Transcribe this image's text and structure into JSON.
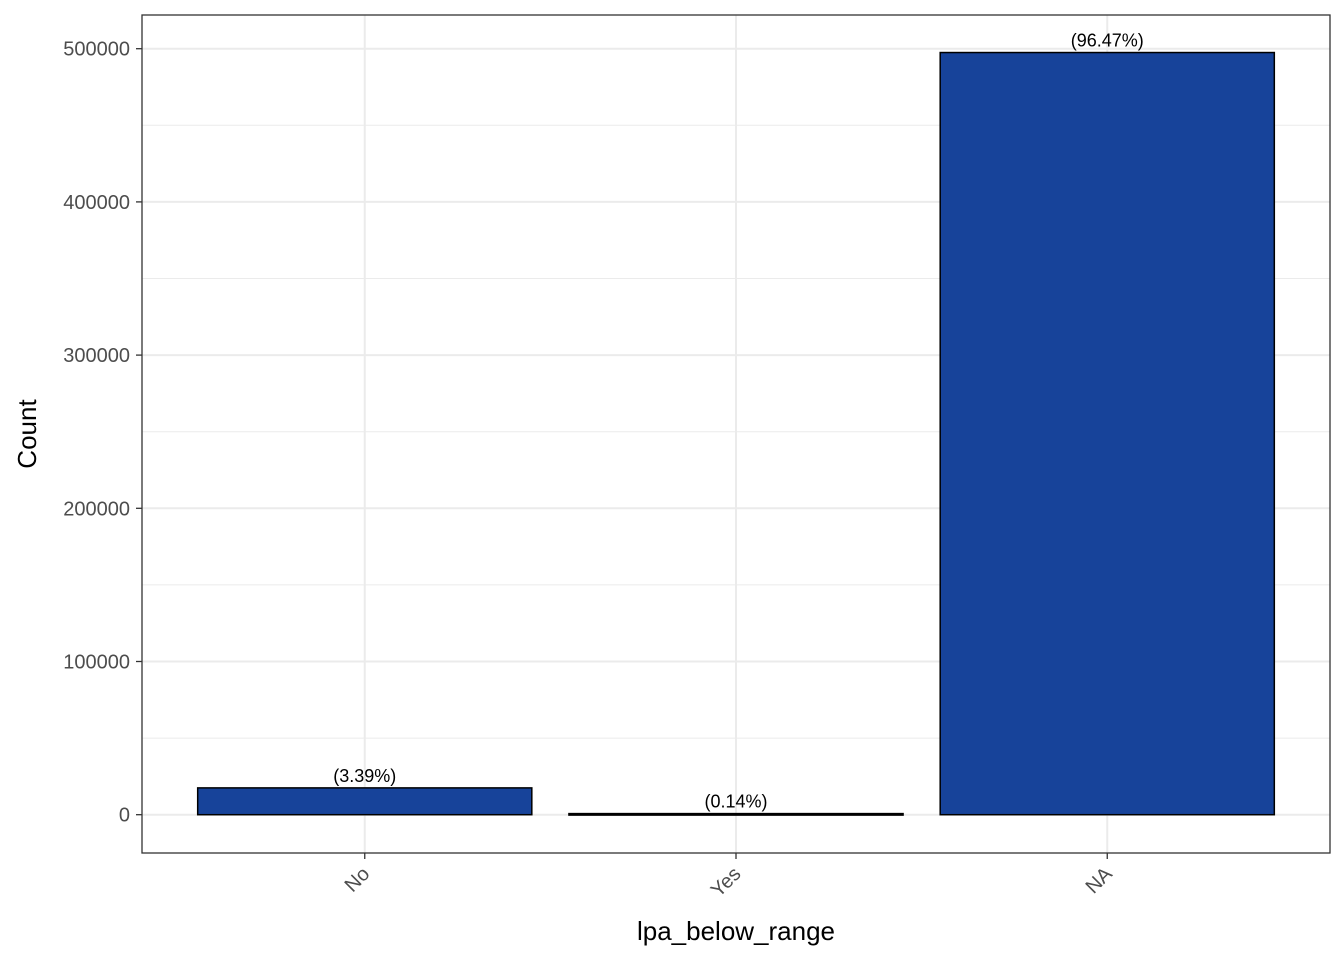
{
  "chart_data": {
    "type": "bar",
    "title": "",
    "xlabel": "lpa_below_range",
    "ylabel": "Count",
    "categories": [
      "No",
      "Yes",
      "NA"
    ],
    "values": [
      17500,
      720,
      497500
    ],
    "labels": [
      "(3.39%)",
      "(0.14%)",
      "(96.47%)"
    ],
    "ylim": [
      -25000,
      522000
    ],
    "yticks": [
      0,
      100000,
      200000,
      300000,
      400000,
      500000
    ],
    "ytick_labels": [
      "0",
      "100000",
      "200000",
      "300000",
      "400000",
      "500000"
    ],
    "grid": true,
    "legend": "none",
    "bar_color": "#17439A",
    "bar_edge_color": "#000000",
    "grid_color": "#EBEBEB"
  }
}
